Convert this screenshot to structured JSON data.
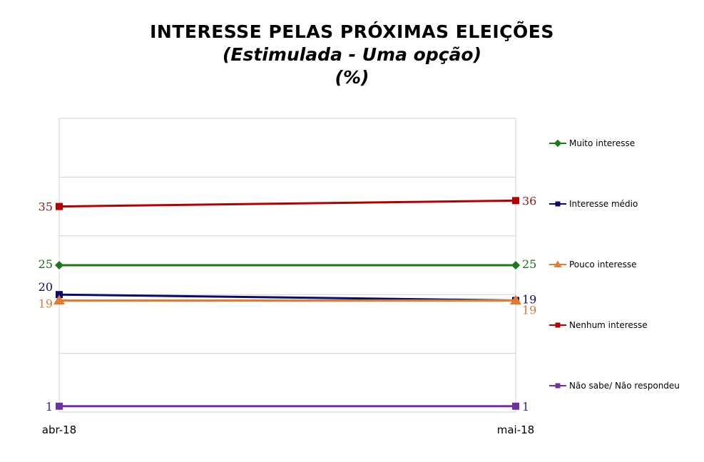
{
  "title": "INTERESSE PELAS PRÓXIMAS ELEIÇÕES",
  "subtitle": "(Estimulada - Uma opção)",
  "unit": "(%)",
  "chart_data": {
    "type": "line",
    "x": [
      "abr-18",
      "mai-18"
    ],
    "ylim": [
      0,
      50
    ],
    "grid": true,
    "legend_position": "right",
    "series": [
      {
        "name": "Muito interesse",
        "values": [
          25,
          25
        ],
        "labels": [
          "25",
          "25"
        ],
        "color": "#1a7a1a",
        "label_color": "#1a6b1a",
        "marker": "diamond"
      },
      {
        "name": "Interesse médio",
        "values": [
          20,
          19
        ],
        "labels": [
          "20",
          "19"
        ],
        "color": "#0b0b6b",
        "label_color": "#0b0b6b",
        "marker": "square"
      },
      {
        "name": "Pouco interesse",
        "values": [
          19,
          19
        ],
        "labels": [
          "19",
          "19"
        ],
        "color": "#e07b30",
        "label_color": "#d8793a",
        "marker": "triangle"
      },
      {
        "name": "Nenhum interesse",
        "values": [
          35,
          36
        ],
        "labels": [
          "35",
          "36"
        ],
        "color": "#b30000",
        "label_color": "#8b1a1a",
        "marker": "square"
      },
      {
        "name": "Não sabe/ Não respondeu",
        "values": [
          1,
          1
        ],
        "labels": [
          "1",
          "1"
        ],
        "color": "#7030a0",
        "label_color": "#3a2a7a",
        "marker": "square"
      }
    ]
  }
}
